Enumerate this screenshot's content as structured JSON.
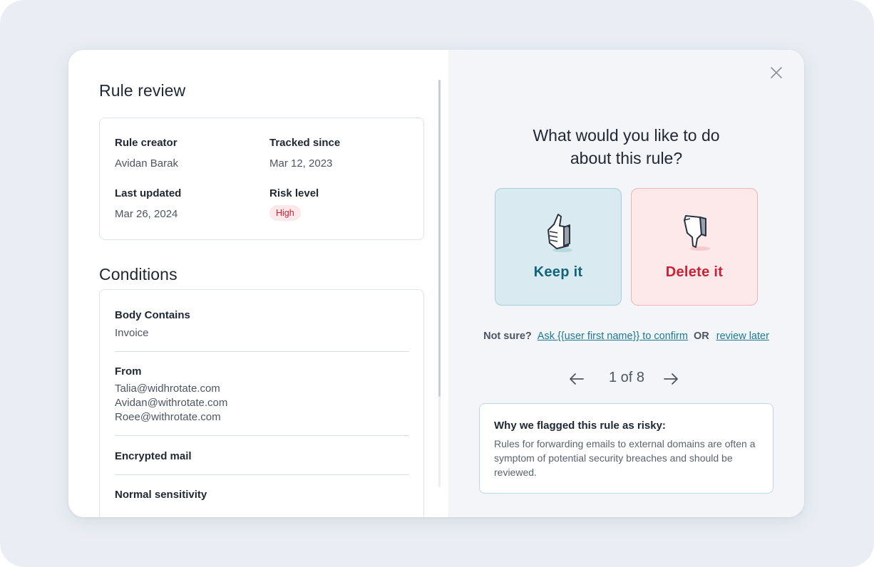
{
  "rule_review": {
    "title": "Rule review",
    "creator_label": "Rule creator",
    "creator_value": "Avidan Barak",
    "tracked_label": "Tracked since",
    "tracked_value": "Mar 12, 2023",
    "updated_label": "Last updated",
    "updated_value": "Mar 26, 2024",
    "risk_label": "Risk level",
    "risk_value": "High",
    "risk_color": "#cc1f33"
  },
  "conditions": {
    "title": "Conditions",
    "items": [
      {
        "title": "Body Contains",
        "values": [
          "Invoice"
        ]
      },
      {
        "title": "From",
        "values": [
          "Talia@widhrotate.com",
          "Avidan@withrotate.com",
          "Roee@withrotate.com"
        ]
      },
      {
        "title": "Encrypted mail",
        "values": []
      },
      {
        "title": "Normal sensitivity",
        "values": []
      }
    ]
  },
  "decision": {
    "question_line1": "What would you like to do",
    "question_line2": "about this rule?",
    "keep_label": "Keep it",
    "keep_icon": "thumbs-up-icon",
    "keep_color": "#12647a",
    "delete_label": "Delete it",
    "delete_icon": "thumbs-down-icon",
    "delete_color": "#cf1f33",
    "not_sure": "Not sure?",
    "ask_link": "Ask {{user first name}} to confirm",
    "or": "OR",
    "review_later": "review later"
  },
  "pager": {
    "text": "1 of 8",
    "prev_icon": "arrow-left-icon",
    "next_icon": "arrow-right-icon"
  },
  "why": {
    "title": "Why we flagged this rule as risky:",
    "text": "Rules for forwarding emails to external domains are often a symptom of potential security breaches and should be reviewed."
  },
  "close_icon": "close-icon"
}
